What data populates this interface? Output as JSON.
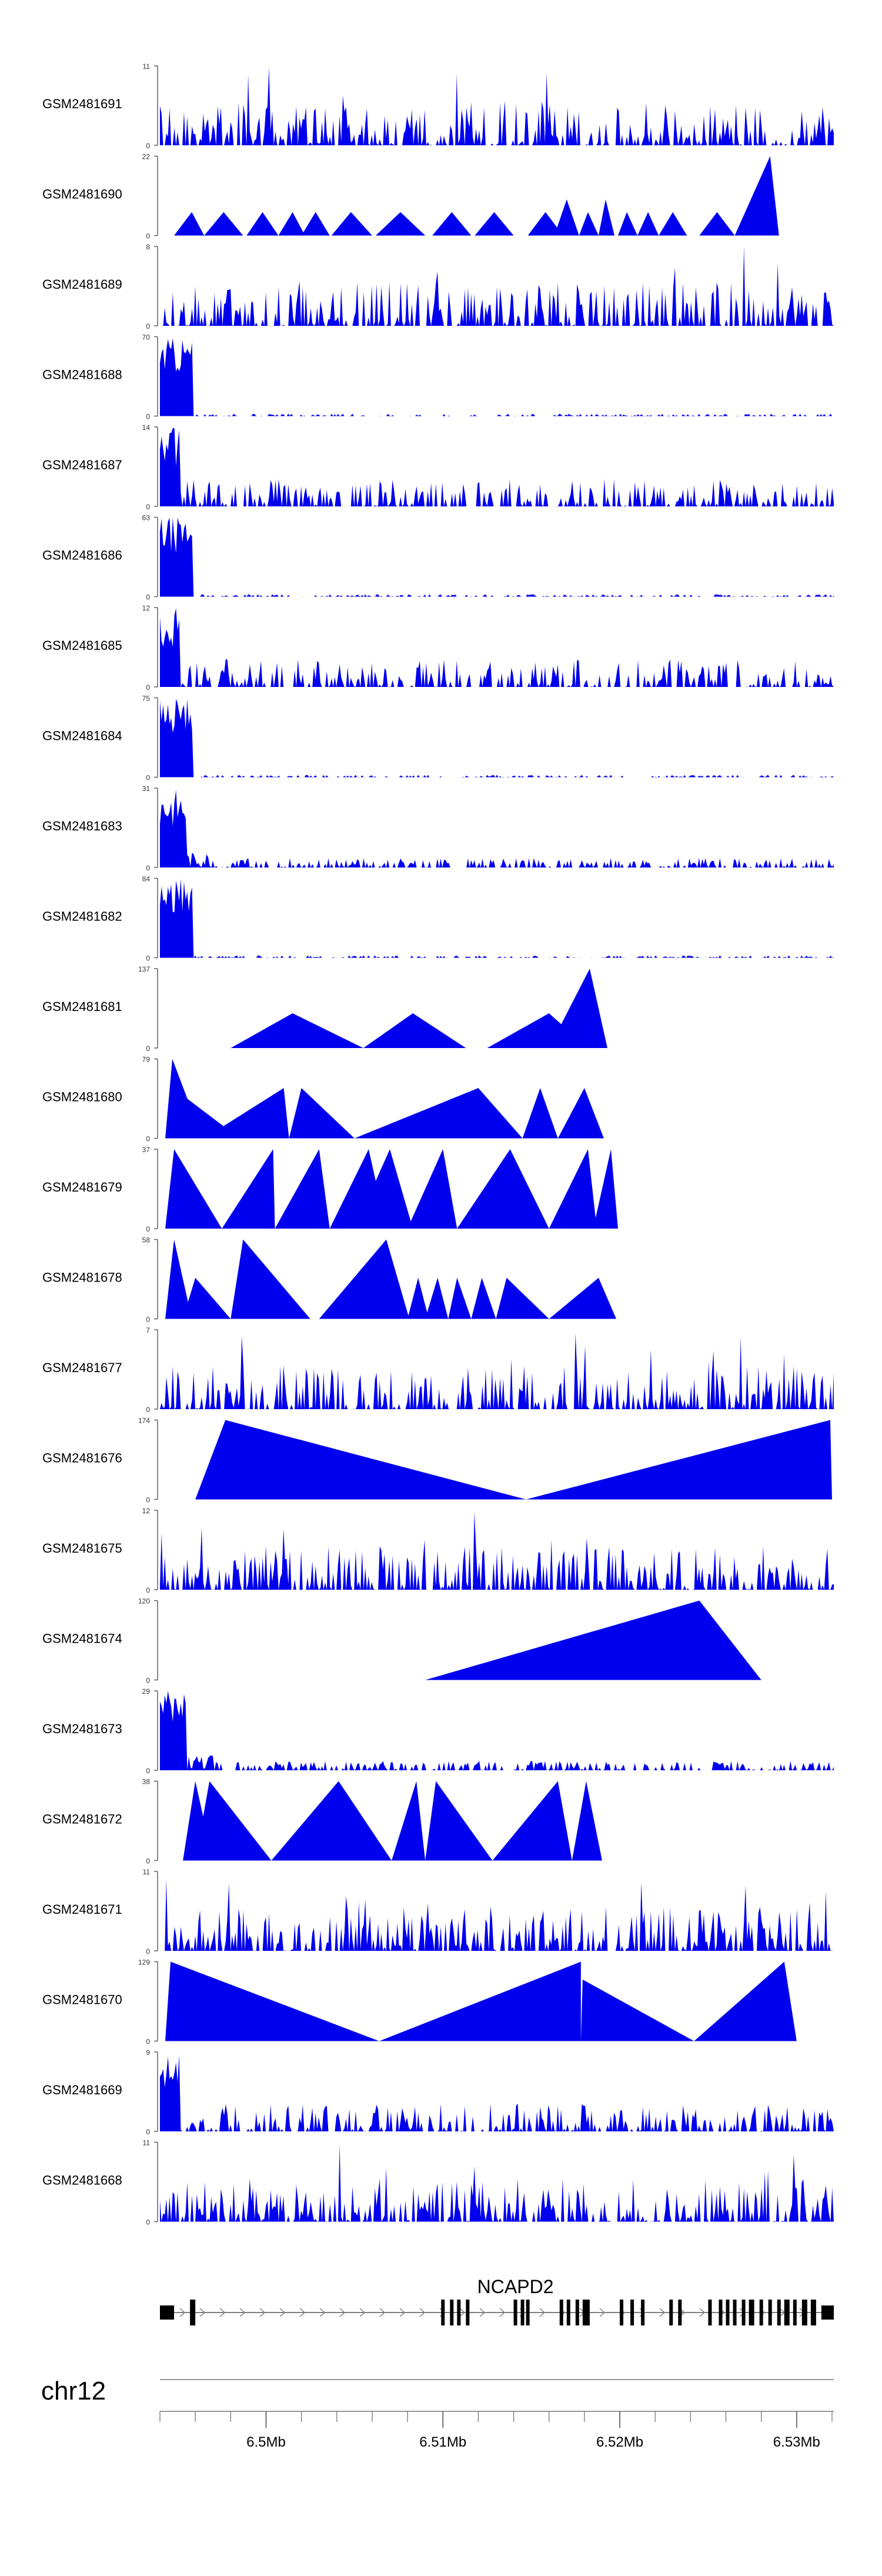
{
  "chart_data": {
    "type": "area",
    "genome": {
      "chromosome": "chr12",
      "xlim": [
        6.494,
        6.5321
      ],
      "unit": "Mb",
      "tick_labels": [
        "6.5Mb",
        "6.51Mb",
        "6.52Mb",
        "6.53Mb"
      ],
      "tick_values": [
        6.5,
        6.51,
        6.52,
        6.53
      ],
      "minor_tick_step": 0.002
    },
    "gene": {
      "name": "NCAPD2",
      "start": 6.494,
      "end": 6.5321,
      "exons": [
        [
          6.494,
          6.4948
        ],
        [
          6.4957,
          6.4959
        ],
        [
          6.4958,
          6.496
        ],
        [
          6.5099,
          6.5101
        ],
        [
          6.5104,
          6.5106
        ],
        [
          6.5108,
          6.511
        ],
        [
          6.5113,
          6.5115
        ],
        [
          6.514,
          6.5142
        ],
        [
          6.5144,
          6.5146
        ],
        [
          6.5147,
          6.5149
        ],
        [
          6.5166,
          6.5168
        ],
        [
          6.517,
          6.5172
        ],
        [
          6.5175,
          6.5177
        ],
        [
          6.5179,
          6.5183
        ],
        [
          6.52,
          6.5202
        ],
        [
          6.5206,
          6.5208
        ],
        [
          6.5212,
          6.5214
        ],
        [
          6.5228,
          6.523
        ],
        [
          6.5233,
          6.5235
        ],
        [
          6.525,
          6.5252
        ],
        [
          6.5256,
          6.5258
        ],
        [
          6.526,
          6.5262
        ],
        [
          6.5264,
          6.5266
        ],
        [
          6.5269,
          6.5271
        ],
        [
          6.5273,
          6.5276
        ],
        [
          6.5279,
          6.5281
        ],
        [
          6.5284,
          6.5286
        ],
        [
          6.5289,
          6.5291
        ],
        [
          6.5293,
          6.5296
        ],
        [
          6.5298,
          6.53
        ],
        [
          6.5303,
          6.5306
        ],
        [
          6.5308,
          6.5311
        ],
        [
          6.5314,
          6.5321
        ]
      ]
    },
    "fill_color": "#0000ee",
    "tracks": [
      {
        "name": "GSM2481691",
        "ymax": 11,
        "pattern": "dense",
        "seed": 91
      },
      {
        "name": "GSM2481690",
        "ymax": 22,
        "pattern": "peaks",
        "peaks": [
          [
            6.4948,
            6.4958,
            6.4965,
            6.5
          ],
          [
            6.4965,
            6.4976,
            6.4987,
            6.5
          ],
          [
            6.4989,
            6.4998,
            6.5007,
            6.5
          ],
          [
            6.5007,
            6.5015,
            6.5022,
            6.5
          ],
          [
            6.502,
            6.5028,
            6.5036,
            6.5
          ],
          [
            6.5037,
            6.5048,
            6.506,
            6.5
          ],
          [
            6.5062,
            6.5076,
            6.509,
            6.5
          ],
          [
            6.5094,
            6.5105,
            6.5116,
            6.5
          ],
          [
            6.5118,
            6.5129,
            6.514,
            6.5
          ],
          [
            6.5148,
            6.5158,
            6.5168,
            6.5
          ],
          [
            6.5163,
            6.517,
            6.5177,
            10
          ],
          [
            6.5177,
            6.5182,
            6.5188,
            6.5
          ],
          [
            6.5188,
            6.5192,
            6.5197,
            10
          ],
          [
            6.5199,
            6.5204,
            6.521,
            6.5
          ],
          [
            6.521,
            6.5216,
            6.5222,
            6.5
          ],
          [
            6.5222,
            6.523,
            6.5238,
            6.5
          ],
          [
            6.5245,
            6.5255,
            6.5265,
            6.5
          ],
          [
            6.5265,
            6.5285,
            6.529,
            22
          ]
        ]
      },
      {
        "name": "GSM2481689",
        "ymax": 8,
        "pattern": "dense",
        "seed": 89
      },
      {
        "name": "GSM2481688",
        "ymax": 70,
        "pattern": "sparse5",
        "seed": 88
      },
      {
        "name": "GSM2481687",
        "ymax": 14,
        "pattern": "sparse5low",
        "seed": 87
      },
      {
        "name": "GSM2481686",
        "ymax": 63,
        "pattern": "sparse5",
        "seed": 86
      },
      {
        "name": "GSM2481685",
        "ymax": 12,
        "pattern": "sparse5low",
        "seed": 85
      },
      {
        "name": "GSM2481684",
        "ymax": 75,
        "pattern": "sparse5",
        "seed": 84
      },
      {
        "name": "GSM2481683",
        "ymax": 31,
        "pattern": "sparse5mid",
        "seed": 83
      },
      {
        "name": "GSM2481682",
        "ymax": 84,
        "pattern": "sparse5",
        "seed": 82
      },
      {
        "name": "GSM2481681",
        "ymax": 137,
        "pattern": "peaks",
        "peaks": [
          [
            6.498,
            6.5015,
            6.5055,
            60
          ],
          [
            6.5055,
            6.5083,
            6.5113,
            60
          ],
          [
            6.5125,
            6.516,
            6.5182,
            60
          ],
          [
            6.516,
            6.5183,
            6.5193,
            137
          ]
        ]
      },
      {
        "name": "GSM2481680",
        "ymax": 79,
        "pattern": "peaks",
        "peaks": [
          [
            6.4943,
            6.4947,
            6.4964,
            79
          ],
          [
            6.4947,
            6.4955,
            6.4985,
            40
          ],
          [
            6.4965,
            6.501,
            6.5013,
            50
          ],
          [
            6.5013,
            6.502,
            6.505,
            50
          ],
          [
            6.505,
            6.512,
            6.5145,
            50
          ],
          [
            6.5145,
            6.5155,
            6.5165,
            50
          ],
          [
            6.5165,
            6.518,
            6.5191,
            50
          ]
        ]
      },
      {
        "name": "GSM2481679",
        "ymax": 37,
        "pattern": "peaks",
        "peaks": [
          [
            6.4943,
            6.4948,
            6.4975,
            37
          ],
          [
            6.4975,
            6.5004,
            6.5005,
            37
          ],
          [
            6.5005,
            6.503,
            6.5036,
            37
          ],
          [
            6.5036,
            6.5058,
            6.5068,
            37
          ],
          [
            6.505,
            6.507,
            6.5083,
            37
          ],
          [
            6.508,
            6.51,
            6.5108,
            37
          ],
          [
            6.5108,
            6.5138,
            6.516,
            37
          ],
          [
            6.516,
            6.5182,
            6.5187,
            37
          ],
          [
            6.5185,
            6.5195,
            6.5199,
            37
          ]
        ]
      },
      {
        "name": "GSM2481678",
        "ymax": 58,
        "pattern": "peaks",
        "peaks": [
          [
            6.4943,
            6.4948,
            6.4958,
            58
          ],
          [
            6.4953,
            6.496,
            6.498,
            30
          ],
          [
            6.498,
            6.4987,
            6.5025,
            58
          ],
          [
            6.503,
            6.5068,
            6.5081,
            58
          ],
          [
            6.508,
            6.5086,
            6.5092,
            30
          ],
          [
            6.509,
            6.5097,
            6.5103,
            30
          ],
          [
            6.5103,
            6.5108,
            6.5116,
            30
          ],
          [
            6.5116,
            6.5122,
            6.513,
            30
          ],
          [
            6.513,
            6.5136,
            6.516,
            30
          ],
          [
            6.516,
            6.5188,
            6.5198,
            30
          ]
        ]
      },
      {
        "name": "GSM2481677",
        "ymax": 7,
        "pattern": "dense",
        "seed": 77
      },
      {
        "name": "GSM2481676",
        "ymax": 174,
        "pattern": "peaks",
        "peaks": [
          [
            6.496,
            6.4977,
            6.5147,
            174
          ],
          [
            6.5147,
            6.5319,
            6.532,
            174
          ]
        ]
      },
      {
        "name": "GSM2481675",
        "ymax": 12,
        "pattern": "dense",
        "seed": 75
      },
      {
        "name": "GSM2481674",
        "ymax": 120,
        "pattern": "peaks",
        "peaks": [
          [
            6.509,
            6.5245,
            6.528,
            120
          ]
        ]
      },
      {
        "name": "GSM2481673",
        "ymax": 29,
        "pattern": "sparse5mid",
        "seed": 73
      },
      {
        "name": "GSM2481672",
        "ymax": 38,
        "pattern": "peaks",
        "peaks": [
          [
            6.4953,
            6.496,
            6.497,
            38
          ],
          [
            6.496,
            6.4968,
            6.5003,
            38
          ],
          [
            6.5003,
            6.5041,
            6.5071,
            38
          ],
          [
            6.5071,
            6.5085,
            6.509,
            38
          ],
          [
            6.509,
            6.5096,
            6.5128,
            38
          ],
          [
            6.5128,
            6.5165,
            6.5173,
            38
          ],
          [
            6.5173,
            6.5181,
            6.519,
            38
          ]
        ]
      },
      {
        "name": "GSM2481671",
        "ymax": 11,
        "pattern": "dense",
        "seed": 71
      },
      {
        "name": "GSM2481670",
        "ymax": 129,
        "pattern": "peaks",
        "peaks": [
          [
            6.4943,
            6.4946,
            6.5064,
            129
          ],
          [
            6.5064,
            6.5178,
            6.5178,
            129
          ],
          [
            6.5178,
            6.5179,
            6.5242,
            100
          ],
          [
            6.5242,
            6.5293,
            6.53,
            129
          ]
        ]
      },
      {
        "name": "GSM2481669",
        "ymax": 9,
        "pattern": "sparse5low",
        "seed": 69
      },
      {
        "name": "GSM2481668",
        "ymax": 11,
        "pattern": "dense",
        "seed": 68
      }
    ]
  }
}
